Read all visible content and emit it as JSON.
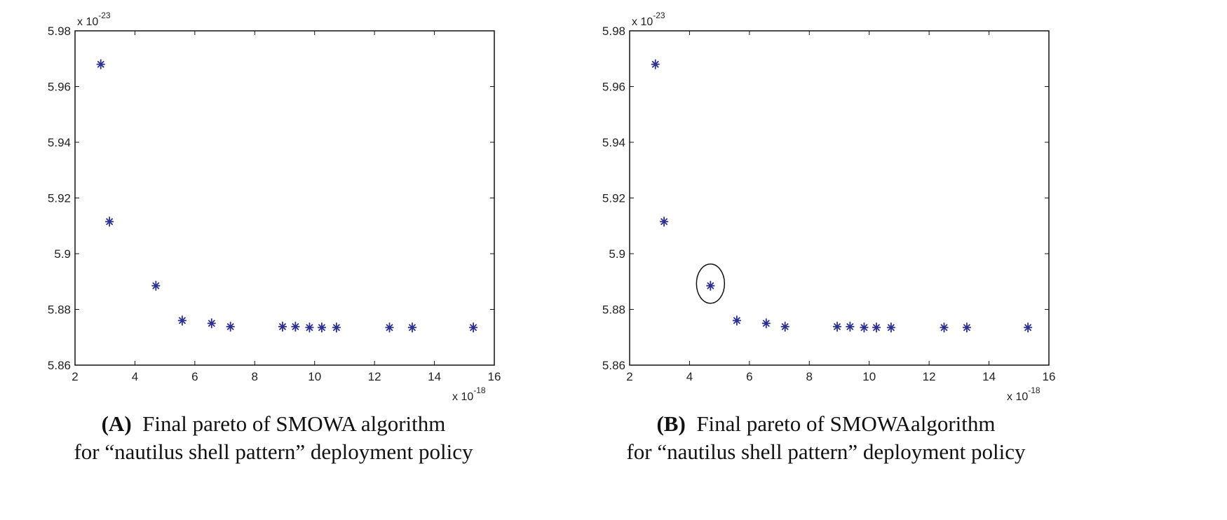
{
  "chart_data": [
    {
      "type": "scatter",
      "panel": "A",
      "caption_tag": "(A)",
      "caption_line1": "Final pareto of  SMOWA algorithm",
      "caption_line2": "for “nautilus shell pattern” deployment policy",
      "x_multiplier": "x 10",
      "x_exponent": "-18",
      "y_multiplier": "x 10",
      "y_exponent": "-23",
      "xlim": [
        2,
        16
      ],
      "ylim": [
        5.86,
        5.98
      ],
      "xticks": [
        "2",
        "4",
        "6",
        "8",
        "10",
        "12",
        "14",
        "16"
      ],
      "yticks": [
        "5.86",
        "5.88",
        "5.9",
        "5.92",
        "5.94",
        "5.96",
        "5.98"
      ],
      "marker": "*",
      "color": "#2b2f8f",
      "points": [
        [
          2.86,
          5.968
        ],
        [
          3.15,
          5.9115
        ],
        [
          4.7,
          5.8885
        ],
        [
          5.58,
          5.876
        ],
        [
          6.56,
          5.875
        ],
        [
          7.19,
          5.8738
        ],
        [
          8.93,
          5.8738
        ],
        [
          9.36,
          5.8738
        ],
        [
          9.83,
          5.8735
        ],
        [
          10.24,
          5.8735
        ],
        [
          10.73,
          5.8735
        ],
        [
          12.5,
          5.8735
        ],
        [
          13.26,
          5.8735
        ],
        [
          15.3,
          5.8735
        ]
      ],
      "highlight_index": null
    },
    {
      "type": "scatter",
      "panel": "B",
      "caption_tag": "(B)",
      "caption_line1": "  Final pareto of  SMOWAalgorithm",
      "caption_line2": "for “nautilus shell pattern” deployment policy",
      "x_multiplier": "x 10",
      "x_exponent": "-18",
      "y_multiplier": "x 10",
      "y_exponent": "-23",
      "xlim": [
        2,
        16
      ],
      "ylim": [
        5.86,
        5.98
      ],
      "xticks": [
        "2",
        "4",
        "6",
        "8",
        "10",
        "12",
        "14",
        "16"
      ],
      "yticks": [
        "5.86",
        "5.88",
        "5.9",
        "5.92",
        "5.94",
        "5.96",
        "5.98"
      ],
      "marker": "*",
      "color": "#2b2f8f",
      "points": [
        [
          2.86,
          5.968
        ],
        [
          3.15,
          5.9115
        ],
        [
          4.7,
          5.8885
        ],
        [
          5.58,
          5.876
        ],
        [
          6.56,
          5.875
        ],
        [
          7.19,
          5.8738
        ],
        [
          8.93,
          5.8738
        ],
        [
          9.36,
          5.8738
        ],
        [
          9.83,
          5.8735
        ],
        [
          10.24,
          5.8735
        ],
        [
          10.73,
          5.8735
        ],
        [
          12.5,
          5.8735
        ],
        [
          13.26,
          5.8735
        ],
        [
          15.3,
          5.8735
        ]
      ],
      "highlight_index": 2
    }
  ]
}
